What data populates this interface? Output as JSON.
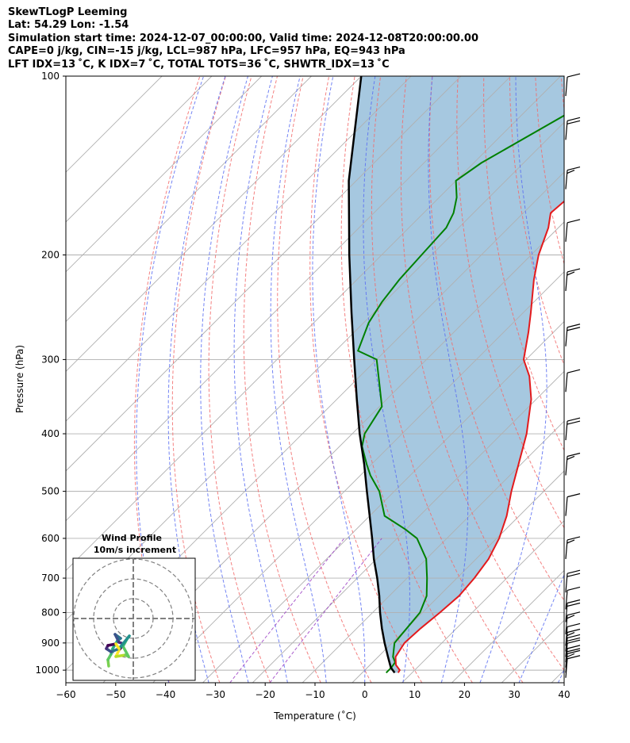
{
  "header": {
    "line1": "SkewTLogP Leeming",
    "line2": "Lat: 54.29   Lon: -1.54",
    "line3": "Simulation start time: 2024-12-07_00:00:00, Valid time: 2024-12-08T20:00:00.00",
    "line4": "CAPE=0 j/kg, CIN=-15 j/kg, LCL=987 hPa, LFC=957 hPa, EQ=943 hPa",
    "line5": "LFT IDX=13 ˚C, K IDX=7 ˚C, TOTAL TOTS=36 ˚C, SHWTR_IDX=13 ˚C"
  },
  "colors": {
    "temperature": "#e31a1c",
    "dewpoint": "#008000",
    "parcel": "#000000",
    "cape_fill": "#a6c8e0",
    "dry_adiabat": "#f26b6b",
    "moist_adiabat": "#5b6ef2",
    "mixing_ratio": "#9b3fc4",
    "isotherm": "#b0b0b0"
  },
  "chart_data": [
    {
      "type": "line",
      "subtype": "skew-t log-p",
      "xlabel": "Temperature (˚C)",
      "ylabel": "Pressure (hPa)",
      "xlim": [
        -60,
        40
      ],
      "ylim": [
        1050,
        100
      ],
      "yscale": "log",
      "grid": true,
      "xticks": [
        "−60",
        "−50",
        "−40",
        "−30",
        "−20",
        "−10",
        "0",
        "10",
        "20",
        "30",
        "40"
      ],
      "xtick_values": [
        -60,
        -50,
        -40,
        -30,
        -20,
        -10,
        0,
        10,
        20,
        30,
        40
      ],
      "yticks": [
        "100",
        "200",
        "300",
        "400",
        "500",
        "600",
        "700",
        "800",
        "900",
        "1000"
      ],
      "ytick_values": [
        100,
        200,
        300,
        400,
        500,
        600,
        700,
        800,
        900,
        1000
      ],
      "series": [
        {
          "role": "temperature",
          "points": [
            [
              1010,
              7.2
            ],
            [
              1000,
              7.0
            ],
            [
              980,
              5.2
            ],
            [
              950,
              3.5
            ],
            [
              900,
              2.5
            ],
            [
              850,
              2.8
            ],
            [
              800,
              3.5
            ],
            [
              750,
              4.0
            ],
            [
              700,
              3.5
            ],
            [
              650,
              2.5
            ],
            [
              600,
              0.5
            ],
            [
              550,
              -2.5
            ],
            [
              500,
              -6.5
            ],
            [
              450,
              -10.5
            ],
            [
              400,
              -15.0
            ],
            [
              350,
              -21.0
            ],
            [
              320,
              -26.0
            ],
            [
              300,
              -30.5
            ],
            [
              270,
              -35.0
            ],
            [
              250,
              -38.5
            ],
            [
              220,
              -44.5
            ],
            [
              200,
              -48.5
            ],
            [
              180,
              -52.0
            ],
            [
              170,
              -54.5
            ],
            [
              160,
              -54.0
            ],
            [
              150,
              -53.5
            ],
            [
              140,
              -54.0
            ],
            [
              130,
              -56.0
            ],
            [
              120,
              -58.5
            ],
            [
              110,
              -61.5
            ],
            [
              100,
              -63.5
            ]
          ]
        },
        {
          "role": "dewpoint",
          "points": [
            [
              1010,
              4.8
            ],
            [
              990,
              4.8
            ],
            [
              970,
              4.5
            ],
            [
              950,
              3.0
            ],
            [
              900,
              0.5
            ],
            [
              850,
              0.0
            ],
            [
              800,
              -0.5
            ],
            [
              750,
              -2.5
            ],
            [
              700,
              -6.0
            ],
            [
              650,
              -10.0
            ],
            [
              600,
              -16.0
            ],
            [
              580,
              -20.0
            ],
            [
              550,
              -27.0
            ],
            [
              500,
              -33.0
            ],
            [
              470,
              -38.0
            ],
            [
              450,
              -41.0
            ],
            [
              420,
              -45.5
            ],
            [
              400,
              -47.5
            ],
            [
              360,
              -49.5
            ],
            [
              330,
              -54.5
            ],
            [
              300,
              -60.0
            ],
            [
              290,
              -65.5
            ],
            [
              260,
              -69.0
            ],
            [
              240,
              -70.5
            ],
            [
              220,
              -71.5
            ],
            [
              200,
              -72.0
            ],
            [
              180,
              -72.5
            ],
            [
              170,
              -74.0
            ],
            [
              160,
              -76.5
            ],
            [
              150,
              -80.0
            ],
            [
              140,
              -78.5
            ],
            [
              120,
              -72.5
            ],
            [
              100,
              -65.5
            ]
          ]
        },
        {
          "role": "parcel",
          "points": [
            [
              1010,
              6.5
            ],
            [
              990,
              4.7
            ],
            [
              950,
              2.0
            ],
            [
              900,
              -1.5
            ],
            [
              850,
              -5.0
            ],
            [
              800,
              -8.5
            ],
            [
              750,
              -12.0
            ],
            [
              700,
              -16.0
            ],
            [
              650,
              -20.5
            ],
            [
              600,
              -25.0
            ],
            [
              550,
              -30.0
            ],
            [
              500,
              -35.5
            ],
            [
              450,
              -41.5
            ],
            [
              400,
              -48.5
            ],
            [
              350,
              -56.0
            ],
            [
              300,
              -64.5
            ],
            [
              250,
              -74.5
            ],
            [
              200,
              -86.5
            ],
            [
              150,
              -101.5
            ],
            [
              100,
              -120.0
            ]
          ]
        }
      ],
      "wind_barbs_pressure": [
        1030,
        1010,
        990,
        970,
        950,
        930,
        910,
        870,
        830,
        790,
        740,
        650,
        550,
        470,
        410,
        340,
        285,
        230,
        190,
        155,
        128,
        108
      ]
    },
    {
      "type": "scatter",
      "subtype": "hodograph",
      "title": "Wind Profile",
      "subtitle": "10m/s increment",
      "grid": true
    }
  ]
}
